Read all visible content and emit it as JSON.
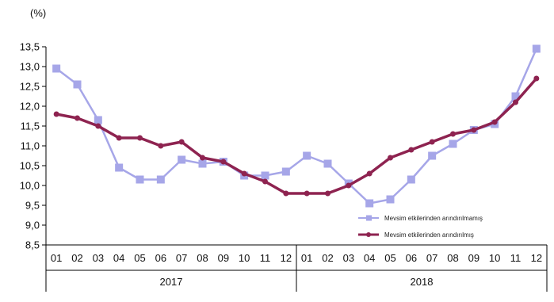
{
  "chart_data": {
    "type": "line",
    "title": "",
    "unit_label": "(%)",
    "xlabel": "",
    "ylabel": "",
    "ylim": [
      8.5,
      13.5
    ],
    "ytick_step": 0.5,
    "yticks": [
      "8,5",
      "9,0",
      "9,5",
      "10,0",
      "10,5",
      "11,0",
      "11,5",
      "12,0",
      "12,5",
      "13,0",
      "13,5"
    ],
    "grid": false,
    "legend_position": "bottom-right",
    "categories": [
      "01",
      "02",
      "03",
      "04",
      "05",
      "06",
      "07",
      "08",
      "09",
      "10",
      "11",
      "12",
      "01",
      "02",
      "03",
      "04",
      "05",
      "06",
      "07",
      "08",
      "09",
      "10",
      "11",
      "12"
    ],
    "groups": [
      {
        "label": "2017",
        "count": 12
      },
      {
        "label": "2018",
        "count": 12
      }
    ],
    "series": [
      {
        "name": "Mevsim etkilerinden arındırılmamış",
        "color": "#a6a6e8",
        "marker": "square",
        "values": [
          12.95,
          12.55,
          11.65,
          10.45,
          10.15,
          10.15,
          10.65,
          10.55,
          10.6,
          10.25,
          10.25,
          10.35,
          10.75,
          10.55,
          10.05,
          9.55,
          9.65,
          10.15,
          10.75,
          11.05,
          11.4,
          11.55,
          12.25,
          13.45
        ]
      },
      {
        "name": "Mevsim etkilerinden arındırılmış",
        "color": "#8e2350",
        "marker": "circle",
        "values": [
          11.8,
          11.7,
          11.5,
          11.2,
          11.2,
          11.0,
          11.1,
          10.7,
          10.6,
          10.3,
          10.1,
          9.8,
          9.8,
          9.8,
          10.0,
          10.3,
          10.7,
          10.9,
          11.1,
          11.3,
          11.4,
          11.6,
          12.1,
          12.7
        ]
      }
    ]
  }
}
